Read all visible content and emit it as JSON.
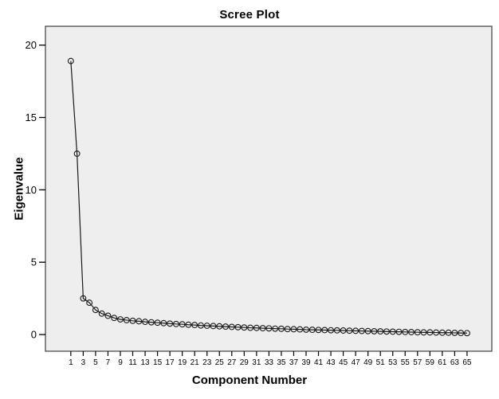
{
  "chart_data": {
    "type": "line",
    "title": "Scree Plot",
    "xlabel": "Component Number",
    "ylabel": "Eigenvalue",
    "x": [
      1,
      2,
      3,
      4,
      5,
      6,
      7,
      8,
      9,
      10,
      11,
      12,
      13,
      14,
      15,
      16,
      17,
      18,
      19,
      20,
      21,
      22,
      23,
      24,
      25,
      26,
      27,
      28,
      29,
      30,
      31,
      32,
      33,
      34,
      35,
      36,
      37,
      38,
      39,
      40,
      41,
      42,
      43,
      44,
      45,
      46,
      47,
      48,
      49,
      50,
      51,
      52,
      53,
      54,
      55,
      56,
      57,
      58,
      59,
      60,
      61,
      62,
      63,
      64,
      65
    ],
    "values": [
      18.9,
      12.5,
      2.5,
      2.2,
      1.7,
      1.45,
      1.3,
      1.15,
      1.05,
      1.0,
      0.95,
      0.92,
      0.88,
      0.85,
      0.82,
      0.79,
      0.76,
      0.73,
      0.71,
      0.68,
      0.66,
      0.63,
      0.61,
      0.59,
      0.57,
      0.55,
      0.53,
      0.51,
      0.49,
      0.47,
      0.46,
      0.44,
      0.43,
      0.41,
      0.4,
      0.38,
      0.37,
      0.36,
      0.34,
      0.33,
      0.32,
      0.31,
      0.3,
      0.29,
      0.28,
      0.27,
      0.26,
      0.25,
      0.24,
      0.23,
      0.22,
      0.21,
      0.2,
      0.19,
      0.18,
      0.17,
      0.16,
      0.15,
      0.15,
      0.14,
      0.13,
      0.13,
      0.12,
      0.11,
      0.1
    ],
    "yticks": [
      0,
      5,
      10,
      15,
      20
    ],
    "xtick_labels": [
      1,
      3,
      5,
      7,
      9,
      11,
      13,
      15,
      17,
      19,
      21,
      23,
      25,
      27,
      29,
      31,
      33,
      35,
      37,
      39,
      41,
      43,
      45,
      47,
      49,
      51,
      53,
      55,
      57,
      59,
      61,
      63,
      65
    ],
    "ylim": [
      -1.15,
      21.3
    ],
    "xlim": [
      -3.1,
      69
    ],
    "grid": "off",
    "legend": "none",
    "marker": "open-circle",
    "line_color": "#1a1a1a",
    "marker_color": "#1a1a1a",
    "plot_bg": "#eeeeee",
    "frame_color": "#4a4a4a",
    "tick_color": "#000000"
  }
}
